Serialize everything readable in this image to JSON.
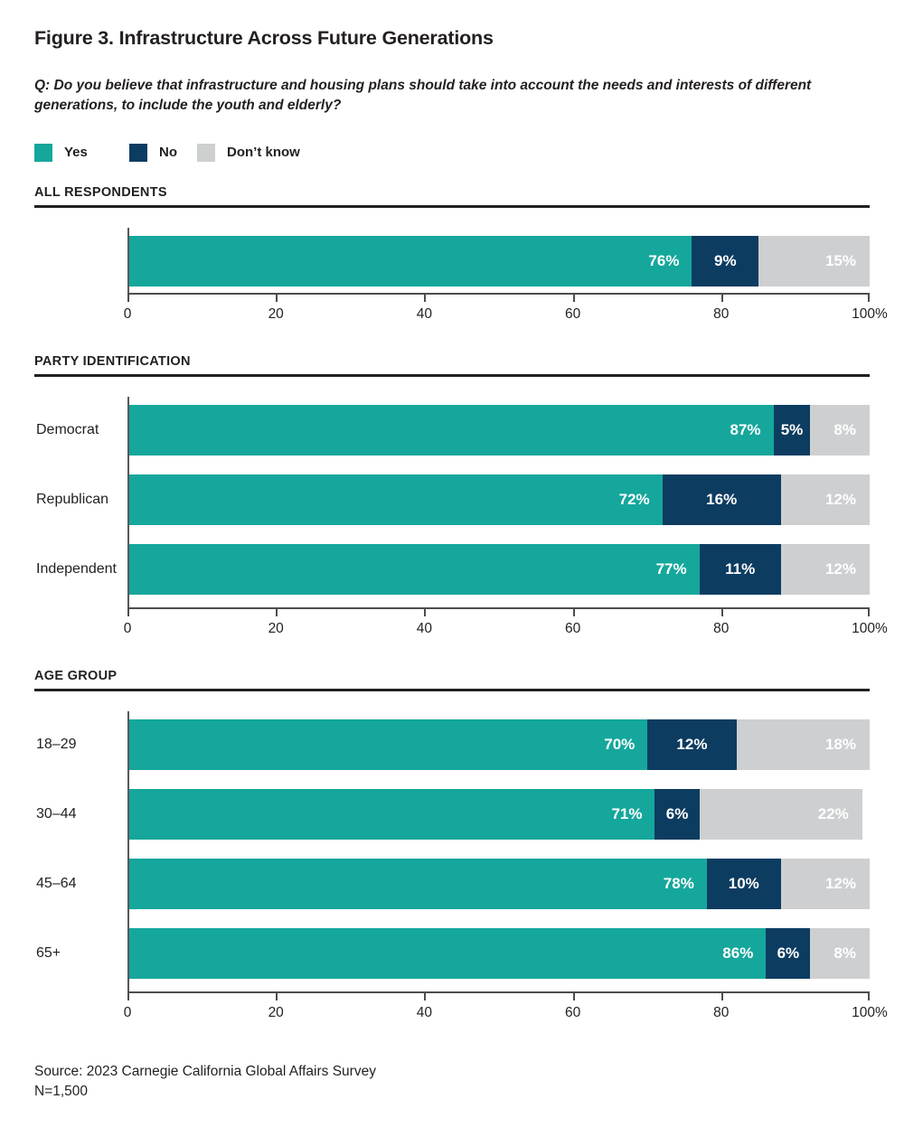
{
  "page": {
    "title": "Figure 3. Infrastructure Across Future Generations",
    "question": "Q: Do you believe that infrastructure and housing plans should take into account the needs and interests of different generations, to include the youth and elderly?",
    "source_line1": "Source: 2023 Carnegie California Global Affairs Survey",
    "source_line2": "N=1,500"
  },
  "colors": {
    "yes": "#15a79c",
    "no": "#0d3c61",
    "dont_know": "#cdcfd1",
    "axis": "#4d4d4f",
    "rule": "#231f20",
    "label_text": "#ffffff"
  },
  "legend": [
    {
      "label": "Yes",
      "color": "#15a79c"
    },
    {
      "label": "No",
      "color": "#0d3c61"
    },
    {
      "label": "Don’t know",
      "color": "#cdcfd1"
    }
  ],
  "chart_data": [
    {
      "type": "bar",
      "stacked": true,
      "orientation": "horizontal",
      "section": "ALL RESPONDENTS",
      "categories": [
        ""
      ],
      "series": [
        {
          "name": "Yes",
          "values": [
            76
          ]
        },
        {
          "name": "No",
          "values": [
            9
          ]
        },
        {
          "name": "Don’t know",
          "values": [
            15
          ]
        }
      ],
      "xlim": [
        0,
        100
      ],
      "x_ticks": [
        "0",
        "20",
        "40",
        "60",
        "80",
        "100%"
      ],
      "grid": false,
      "value_label_format": "percent"
    },
    {
      "type": "bar",
      "stacked": true,
      "orientation": "horizontal",
      "section": "PARTY IDENTIFICATION",
      "categories": [
        "Democrat",
        "Republican",
        "Independent"
      ],
      "series": [
        {
          "name": "Yes",
          "values": [
            87,
            72,
            77
          ]
        },
        {
          "name": "No",
          "values": [
            5,
            16,
            11
          ]
        },
        {
          "name": "Don’t know",
          "values": [
            8,
            12,
            12
          ]
        }
      ],
      "xlim": [
        0,
        100
      ],
      "x_ticks": [
        "0",
        "20",
        "40",
        "60",
        "80",
        "100%"
      ],
      "grid": false,
      "value_label_format": "percent"
    },
    {
      "type": "bar",
      "stacked": true,
      "orientation": "horizontal",
      "section": "AGE GROUP",
      "categories": [
        "18–29",
        "30–44",
        "45–64",
        "65+"
      ],
      "series": [
        {
          "name": "Yes",
          "values": [
            70,
            71,
            78,
            86
          ]
        },
        {
          "name": "No",
          "values": [
            12,
            6,
            10,
            6
          ]
        },
        {
          "name": "Don’t know",
          "values": [
            18,
            22,
            12,
            8
          ]
        }
      ],
      "xlim": [
        0,
        100
      ],
      "x_ticks": [
        "0",
        "20",
        "40",
        "60",
        "80",
        "100%"
      ],
      "grid": false,
      "value_label_format": "percent"
    }
  ]
}
